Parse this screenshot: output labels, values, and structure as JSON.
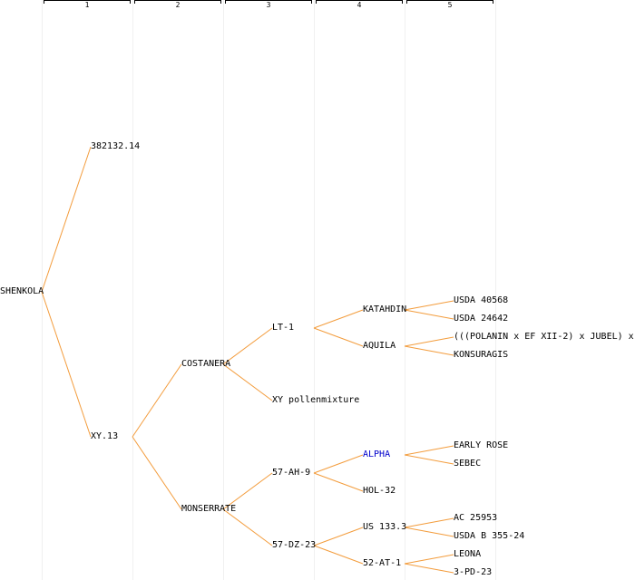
{
  "generations": [
    "1",
    "2",
    "3",
    "4",
    "5"
  ],
  "colors": {
    "edge": "#f39c3c",
    "highlight": "#0000cc",
    "text": "#000000"
  },
  "tree": {
    "root": "SHENKOLA",
    "nodes": [
      {
        "id": "shenkola",
        "label": "SHENKOLA",
        "gen": 0
      },
      {
        "id": "n382132",
        "label": "382132.14",
        "gen": 1,
        "parent": "shenkola"
      },
      {
        "id": "xy13",
        "label": "XY.13",
        "gen": 1,
        "parent": "shenkola"
      },
      {
        "id": "costanera",
        "label": "COSTANERA",
        "gen": 2,
        "parent": "xy13"
      },
      {
        "id": "monserrate",
        "label": "MONSERRATE",
        "gen": 2,
        "parent": "xy13"
      },
      {
        "id": "lt1",
        "label": "LT-1",
        "gen": 3,
        "parent": "costanera"
      },
      {
        "id": "xypollen",
        "label": "XY pollenmixture",
        "gen": 3,
        "parent": "costanera"
      },
      {
        "id": "ah9",
        "label": "57-AH-9",
        "gen": 3,
        "parent": "monserrate"
      },
      {
        "id": "dz23",
        "label": "57-DZ-23",
        "gen": 3,
        "parent": "monserrate"
      },
      {
        "id": "katahdin",
        "label": "KATAHDIN",
        "gen": 4,
        "parent": "lt1"
      },
      {
        "id": "aquila",
        "label": "AQUILA",
        "gen": 4,
        "parent": "lt1"
      },
      {
        "id": "alpha",
        "label": "ALPHA",
        "gen": 4,
        "parent": "ah9",
        "highlight": true
      },
      {
        "id": "hol32",
        "label": "HOL-32",
        "gen": 4,
        "parent": "ah9"
      },
      {
        "id": "us133",
        "label": "US 133.3",
        "gen": 4,
        "parent": "dz23"
      },
      {
        "id": "at1",
        "label": "52-AT-1",
        "gen": 4,
        "parent": "dz23"
      },
      {
        "id": "usda40568",
        "label": "USDA 40568",
        "gen": 5,
        "parent": "katahdin"
      },
      {
        "id": "usda24642",
        "label": "USDA 24642",
        "gen": 5,
        "parent": "katahdin"
      },
      {
        "id": "polanin",
        "label": "(((POLANIN x EF XII-2) x JUBEL) x",
        "gen": 5,
        "parent": "aquila"
      },
      {
        "id": "konsuragis",
        "label": "KONSURAGIS",
        "gen": 5,
        "parent": "aquila"
      },
      {
        "id": "earlyrose",
        "label": "EARLY ROSE",
        "gen": 5,
        "parent": "alpha"
      },
      {
        "id": "sebec",
        "label": "SEBEC",
        "gen": 5,
        "parent": "alpha"
      },
      {
        "id": "ac25953",
        "label": "AC 25953",
        "gen": 5,
        "parent": "us133"
      },
      {
        "id": "usdab355",
        "label": "USDA B 355-24",
        "gen": 5,
        "parent": "us133"
      },
      {
        "id": "leona",
        "label": "LEONA",
        "gen": 5,
        "parent": "at1"
      },
      {
        "id": "pd23",
        "label": "3-PD-23",
        "gen": 5,
        "parent": "at1"
      }
    ]
  }
}
